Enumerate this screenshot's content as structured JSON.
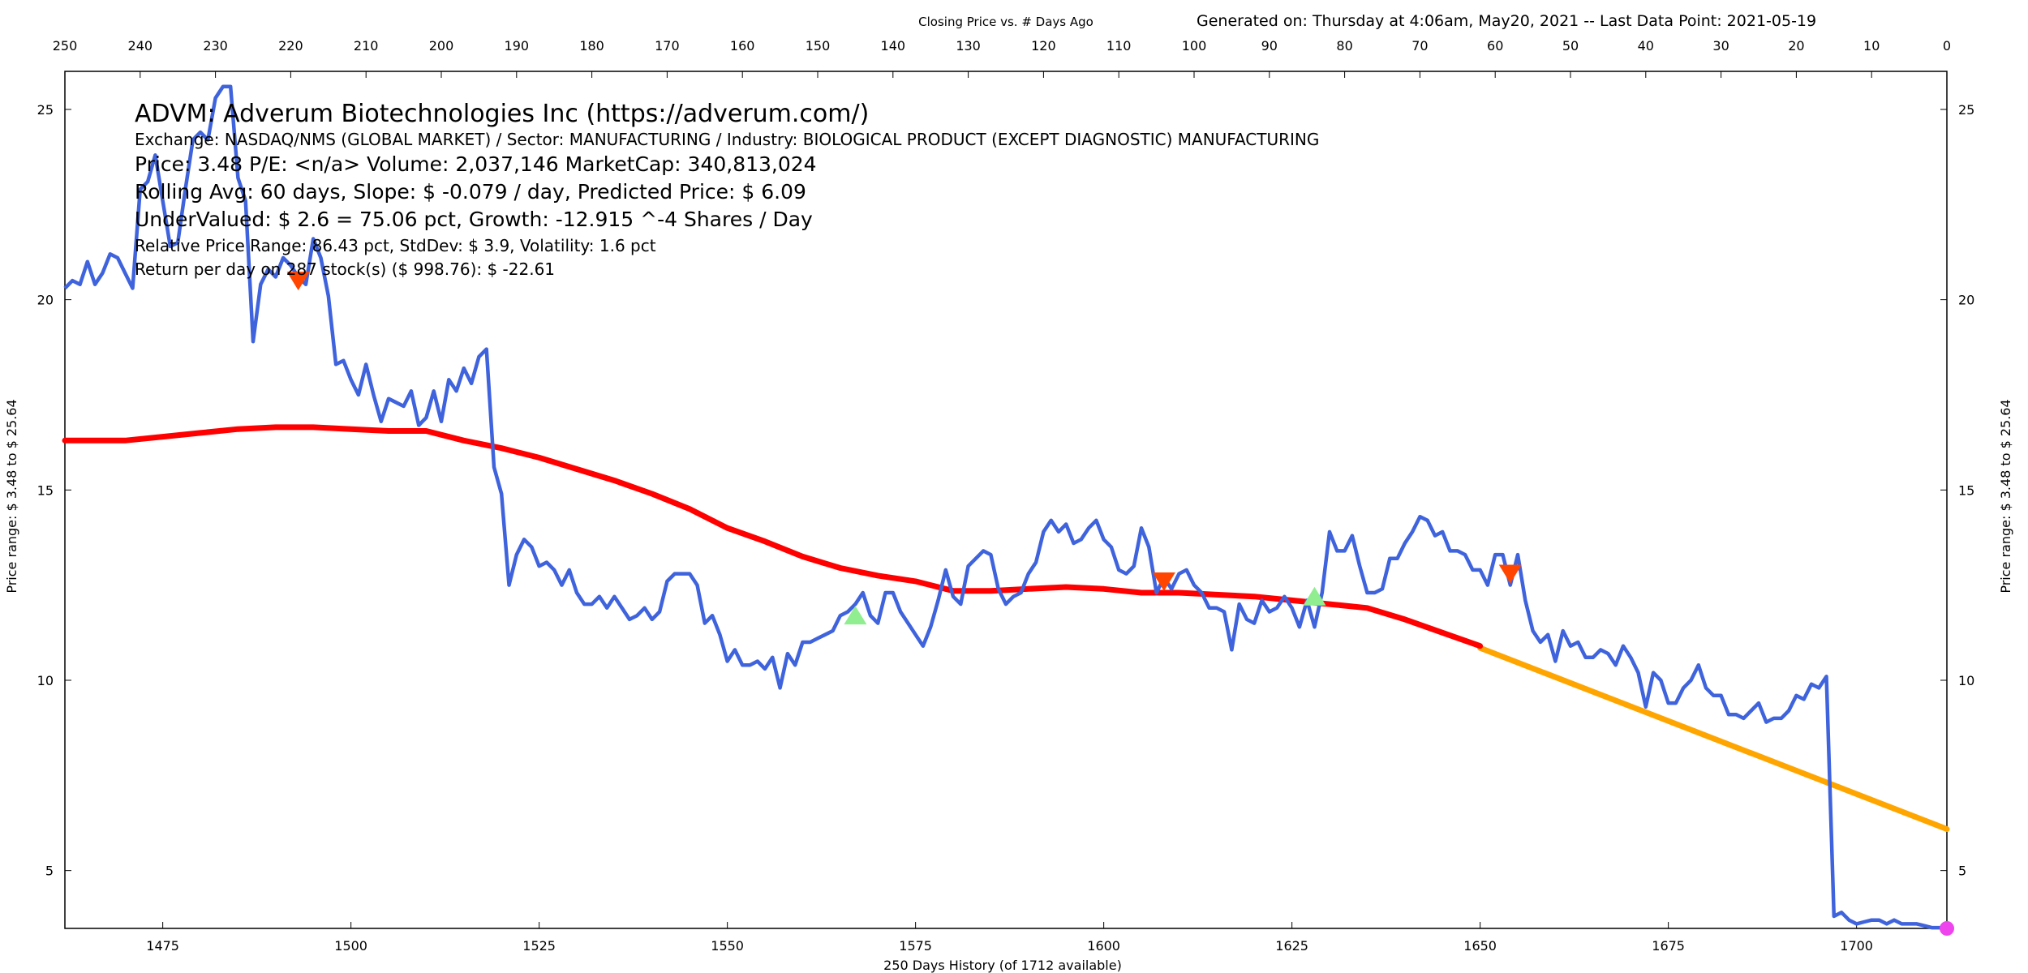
{
  "header": {
    "top_center": "Closing Price vs. # Days Ago",
    "generated": "Generated on:  Thursday at  4:06am, May20, 2021  --  Last Data Point:  2021-05-19"
  },
  "axes": {
    "xlabel_bottom": "250 Days History (of 1712 available)",
    "ylabel_left": "Price range:  $ 3.48  to  $ 25.64",
    "ylabel_right": "Price range: $ 3.48  to  $ 25.64"
  },
  "info": {
    "line1": "ADVM:  Adverum Biotechnologies Inc  (https://adverum.com/)",
    "line2": "Exchange: NASDAQ/NMS (GLOBAL MARKET)  /  Sector: MANUFACTURING  /  Industry: BIOLOGICAL PRODUCT (EXCEPT DIAGNOSTIC) MANUFACTURING",
    "line3": "Price: 3.48  P/E: <n/a> Volume: 2,037,146  MarketCap: 340,813,024",
    "line4": "Rolling Avg: 60 days, Slope: $ -0.079 / day, Predicted Price: $ 6.09",
    "line5": "UnderValued: $ 2.6 = 75.06 pct,  Growth: -12.915 ^-4 Shares / Day",
    "line6": "Relative Price Range: 86.43 pct, StdDev: $ 3.9, Volatility: 1.6 pct",
    "line7": "Return per day on 287 stock(s) ($ 998.76): $ -22.61"
  },
  "chart_data": {
    "type": "line",
    "x_bottom_range": [
      1462,
      1712
    ],
    "x_top_range": [
      250,
      0
    ],
    "ylim": [
      3.48,
      26.0
    ],
    "x_bottom_ticks": [
      1475,
      1500,
      1525,
      1550,
      1575,
      1600,
      1625,
      1650,
      1675,
      1700
    ],
    "x_top_ticks": [
      250,
      240,
      230,
      220,
      210,
      200,
      190,
      180,
      170,
      160,
      150,
      140,
      130,
      120,
      110,
      100,
      90,
      80,
      70,
      60,
      50,
      40,
      30,
      20,
      10,
      0
    ],
    "y_ticks": [
      5,
      10,
      15,
      20,
      25
    ],
    "colors": {
      "price": "#3f63dc",
      "rolling": "#ff0000",
      "projection": "#ffa500",
      "buy": "#90ee90",
      "sell": "#ff4500",
      "last": "#ee44ee"
    },
    "price": [
      [
        1462,
        20.3
      ],
      [
        1463,
        20.5
      ],
      [
        1464,
        20.4
      ],
      [
        1465,
        21.0
      ],
      [
        1466,
        20.4
      ],
      [
        1467,
        20.7
      ],
      [
        1468,
        21.2
      ],
      [
        1469,
        21.1
      ],
      [
        1470,
        20.7
      ],
      [
        1471,
        20.3
      ],
      [
        1472,
        22.9
      ],
      [
        1473,
        23.1
      ],
      [
        1474,
        23.8
      ],
      [
        1475,
        22.6
      ],
      [
        1476,
        21.4
      ],
      [
        1477,
        21.5
      ],
      [
        1478,
        22.9
      ],
      [
        1479,
        24.2
      ],
      [
        1480,
        24.4
      ],
      [
        1481,
        24.2
      ],
      [
        1482,
        25.3
      ],
      [
        1483,
        25.6
      ],
      [
        1484,
        25.6
      ],
      [
        1485,
        23.2
      ],
      [
        1486,
        22.6
      ],
      [
        1487,
        18.9
      ],
      [
        1488,
        20.4
      ],
      [
        1489,
        20.8
      ],
      [
        1490,
        20.6
      ],
      [
        1491,
        21.1
      ],
      [
        1492,
        20.9
      ],
      [
        1493,
        20.6
      ],
      [
        1494,
        20.4
      ],
      [
        1495,
        21.6
      ],
      [
        1496,
        21.1
      ],
      [
        1497,
        20.1
      ],
      [
        1498,
        18.3
      ],
      [
        1499,
        18.4
      ],
      [
        1500,
        17.9
      ],
      [
        1501,
        17.5
      ],
      [
        1502,
        18.3
      ],
      [
        1503,
        17.5
      ],
      [
        1504,
        16.8
      ],
      [
        1505,
        17.4
      ],
      [
        1506,
        17.3
      ],
      [
        1507,
        17.2
      ],
      [
        1508,
        17.6
      ],
      [
        1509,
        16.7
      ],
      [
        1510,
        16.9
      ],
      [
        1511,
        17.6
      ],
      [
        1512,
        16.8
      ],
      [
        1513,
        17.9
      ],
      [
        1514,
        17.6
      ],
      [
        1515,
        18.2
      ],
      [
        1516,
        17.8
      ],
      [
        1517,
        18.5
      ],
      [
        1518,
        18.7
      ],
      [
        1519,
        15.6
      ],
      [
        1520,
        14.9
      ],
      [
        1521,
        12.5
      ],
      [
        1522,
        13.3
      ],
      [
        1523,
        13.7
      ],
      [
        1524,
        13.5
      ],
      [
        1525,
        13.0
      ],
      [
        1526,
        13.1
      ],
      [
        1527,
        12.9
      ],
      [
        1528,
        12.5
      ],
      [
        1529,
        12.9
      ],
      [
        1530,
        12.3
      ],
      [
        1531,
        12.0
      ],
      [
        1532,
        12.0
      ],
      [
        1533,
        12.2
      ],
      [
        1534,
        11.9
      ],
      [
        1535,
        12.2
      ],
      [
        1536,
        11.9
      ],
      [
        1537,
        11.6
      ],
      [
        1538,
        11.7
      ],
      [
        1539,
        11.9
      ],
      [
        1540,
        11.6
      ],
      [
        1541,
        11.8
      ],
      [
        1542,
        12.6
      ],
      [
        1543,
        12.8
      ],
      [
        1544,
        12.8
      ],
      [
        1545,
        12.8
      ],
      [
        1546,
        12.5
      ],
      [
        1547,
        11.5
      ],
      [
        1548,
        11.7
      ],
      [
        1549,
        11.2
      ],
      [
        1550,
        10.5
      ],
      [
        1551,
        10.8
      ],
      [
        1552,
        10.4
      ],
      [
        1553,
        10.4
      ],
      [
        1554,
        10.5
      ],
      [
        1555,
        10.3
      ],
      [
        1556,
        10.6
      ],
      [
        1557,
        9.8
      ],
      [
        1558,
        10.7
      ],
      [
        1559,
        10.4
      ],
      [
        1560,
        11.0
      ],
      [
        1561,
        11.0
      ],
      [
        1562,
        11.1
      ],
      [
        1563,
        11.2
      ],
      [
        1564,
        11.3
      ],
      [
        1565,
        11.7
      ],
      [
        1566,
        11.8
      ],
      [
        1567,
        12.0
      ],
      [
        1568,
        12.3
      ],
      [
        1569,
        11.7
      ],
      [
        1570,
        11.5
      ],
      [
        1571,
        12.3
      ],
      [
        1572,
        12.3
      ],
      [
        1573,
        11.8
      ],
      [
        1574,
        11.5
      ],
      [
        1575,
        11.2
      ],
      [
        1576,
        10.9
      ],
      [
        1577,
        11.4
      ],
      [
        1578,
        12.1
      ],
      [
        1579,
        12.9
      ],
      [
        1580,
        12.2
      ],
      [
        1581,
        12.0
      ],
      [
        1582,
        13.0
      ],
      [
        1583,
        13.2
      ],
      [
        1584,
        13.4
      ],
      [
        1585,
        13.3
      ],
      [
        1586,
        12.4
      ],
      [
        1587,
        12.0
      ],
      [
        1588,
        12.2
      ],
      [
        1589,
        12.3
      ],
      [
        1590,
        12.8
      ],
      [
        1591,
        13.1
      ],
      [
        1592,
        13.9
      ],
      [
        1593,
        14.2
      ],
      [
        1594,
        13.9
      ],
      [
        1595,
        14.1
      ],
      [
        1596,
        13.6
      ],
      [
        1597,
        13.7
      ],
      [
        1598,
        14.0
      ],
      [
        1599,
        14.2
      ],
      [
        1600,
        13.7
      ],
      [
        1601,
        13.5
      ],
      [
        1602,
        12.9
      ],
      [
        1603,
        12.8
      ],
      [
        1604,
        13.0
      ],
      [
        1605,
        14.0
      ],
      [
        1606,
        13.5
      ],
      [
        1607,
        12.3
      ],
      [
        1608,
        12.7
      ],
      [
        1609,
        12.4
      ],
      [
        1610,
        12.8
      ],
      [
        1611,
        12.9
      ],
      [
        1612,
        12.5
      ],
      [
        1613,
        12.3
      ],
      [
        1614,
        11.9
      ],
      [
        1615,
        11.9
      ],
      [
        1616,
        11.8
      ],
      [
        1617,
        10.8
      ],
      [
        1618,
        12.0
      ],
      [
        1619,
        11.6
      ],
      [
        1620,
        11.5
      ],
      [
        1621,
        12.1
      ],
      [
        1622,
        11.8
      ],
      [
        1623,
        11.9
      ],
      [
        1624,
        12.2
      ],
      [
        1625,
        11.9
      ],
      [
        1626,
        11.4
      ],
      [
        1627,
        12.1
      ],
      [
        1628,
        11.4
      ],
      [
        1629,
        12.3
      ],
      [
        1630,
        13.9
      ],
      [
        1631,
        13.4
      ],
      [
        1632,
        13.4
      ],
      [
        1633,
        13.8
      ],
      [
        1634,
        13.0
      ],
      [
        1635,
        12.3
      ],
      [
        1636,
        12.3
      ],
      [
        1637,
        12.4
      ],
      [
        1638,
        13.2
      ],
      [
        1639,
        13.2
      ],
      [
        1640,
        13.6
      ],
      [
        1641,
        13.9
      ],
      [
        1642,
        14.3
      ],
      [
        1643,
        14.2
      ],
      [
        1644,
        13.8
      ],
      [
        1645,
        13.9
      ],
      [
        1646,
        13.4
      ],
      [
        1647,
        13.4
      ],
      [
        1648,
        13.3
      ],
      [
        1649,
        12.9
      ],
      [
        1650,
        12.9
      ],
      [
        1651,
        12.5
      ],
      [
        1652,
        13.3
      ],
      [
        1653,
        13.3
      ],
      [
        1654,
        12.5
      ],
      [
        1655,
        13.3
      ],
      [
        1656,
        12.1
      ],
      [
        1657,
        11.3
      ],
      [
        1658,
        11.0
      ],
      [
        1659,
        11.2
      ],
      [
        1660,
        10.5
      ],
      [
        1661,
        11.3
      ],
      [
        1662,
        10.9
      ],
      [
        1663,
        11.0
      ],
      [
        1664,
        10.6
      ],
      [
        1665,
        10.6
      ],
      [
        1666,
        10.8
      ],
      [
        1667,
        10.7
      ],
      [
        1668,
        10.4
      ],
      [
        1669,
        10.9
      ],
      [
        1670,
        10.6
      ],
      [
        1671,
        10.2
      ],
      [
        1672,
        9.3
      ],
      [
        1673,
        10.2
      ],
      [
        1674,
        10.0
      ],
      [
        1675,
        9.4
      ],
      [
        1676,
        9.4
      ],
      [
        1677,
        9.8
      ],
      [
        1678,
        10.0
      ],
      [
        1679,
        10.4
      ],
      [
        1680,
        9.8
      ],
      [
        1681,
        9.6
      ],
      [
        1682,
        9.6
      ],
      [
        1683,
        9.1
      ],
      [
        1684,
        9.1
      ],
      [
        1685,
        9.0
      ],
      [
        1686,
        9.2
      ],
      [
        1687,
        9.4
      ],
      [
        1688,
        8.9
      ],
      [
        1689,
        9.0
      ],
      [
        1690,
        9.0
      ],
      [
        1691,
        9.2
      ],
      [
        1692,
        9.6
      ],
      [
        1693,
        9.5
      ],
      [
        1694,
        9.9
      ],
      [
        1695,
        9.8
      ],
      [
        1696,
        10.1
      ],
      [
        1697,
        3.8
      ],
      [
        1698,
        3.9
      ],
      [
        1699,
        3.7
      ],
      [
        1700,
        3.6
      ],
      [
        1701,
        3.65
      ],
      [
        1702,
        3.7
      ],
      [
        1703,
        3.7
      ],
      [
        1704,
        3.6
      ],
      [
        1705,
        3.7
      ],
      [
        1706,
        3.6
      ],
      [
        1707,
        3.6
      ],
      [
        1708,
        3.6
      ],
      [
        1709,
        3.55
      ],
      [
        1710,
        3.5
      ],
      [
        1711,
        3.5
      ],
      [
        1712,
        3.48
      ]
    ],
    "rolling_avg": [
      [
        1462,
        16.3
      ],
      [
        1470,
        16.3
      ],
      [
        1475,
        16.4
      ],
      [
        1480,
        16.5
      ],
      [
        1485,
        16.6
      ],
      [
        1490,
        16.65
      ],
      [
        1495,
        16.65
      ],
      [
        1500,
        16.6
      ],
      [
        1505,
        16.55
      ],
      [
        1510,
        16.55
      ],
      [
        1515,
        16.3
      ],
      [
        1520,
        16.1
      ],
      [
        1525,
        15.85
      ],
      [
        1530,
        15.55
      ],
      [
        1535,
        15.25
      ],
      [
        1540,
        14.9
      ],
      [
        1545,
        14.5
      ],
      [
        1550,
        14.0
      ],
      [
        1555,
        13.65
      ],
      [
        1560,
        13.25
      ],
      [
        1565,
        12.95
      ],
      [
        1570,
        12.75
      ],
      [
        1575,
        12.6
      ],
      [
        1580,
        12.35
      ],
      [
        1585,
        12.35
      ],
      [
        1590,
        12.4
      ],
      [
        1595,
        12.45
      ],
      [
        1600,
        12.4
      ],
      [
        1605,
        12.3
      ],
      [
        1610,
        12.3
      ],
      [
        1615,
        12.25
      ],
      [
        1620,
        12.2
      ],
      [
        1625,
        12.1
      ],
      [
        1630,
        12.0
      ],
      [
        1635,
        11.9
      ],
      [
        1640,
        11.6
      ],
      [
        1645,
        11.25
      ],
      [
        1650,
        10.9
      ]
    ],
    "projection": [
      [
        1650,
        10.85
      ],
      [
        1712,
        6.09
      ]
    ],
    "buy_markers": [
      [
        1567,
        11.7
      ],
      [
        1628,
        12.2
      ]
    ],
    "sell_markers": [
      [
        1493,
        20.5
      ],
      [
        1608,
        12.6
      ],
      [
        1654,
        12.8
      ]
    ],
    "last_point": [
      1712,
      3.48
    ]
  }
}
